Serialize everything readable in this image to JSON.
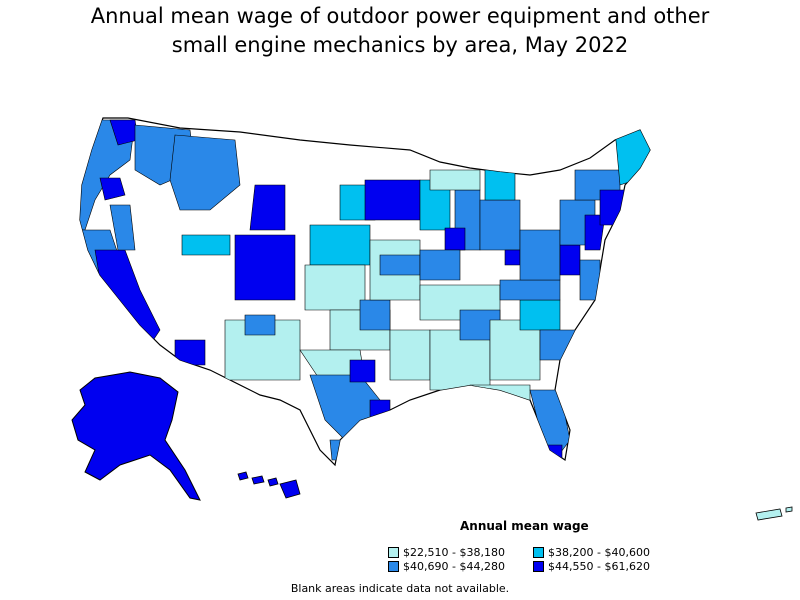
{
  "title": "Annual mean wage of outdoor power equipment and other\nsmall engine mechanics by area, May 2022",
  "legend": {
    "title": "Annual mean wage",
    "items": [
      {
        "label": "$22,510 - $38,180",
        "color": "#b3f0ef"
      },
      {
        "label": "$38,200 - $40,600",
        "color": "#00c0f0"
      },
      {
        "label": "$40,690 - $44,280",
        "color": "#2a88e8"
      },
      {
        "label": "$44,550 - $61,620",
        "color": "#0000f0"
      }
    ]
  },
  "footnote": "Blank areas indicate data not available."
}
